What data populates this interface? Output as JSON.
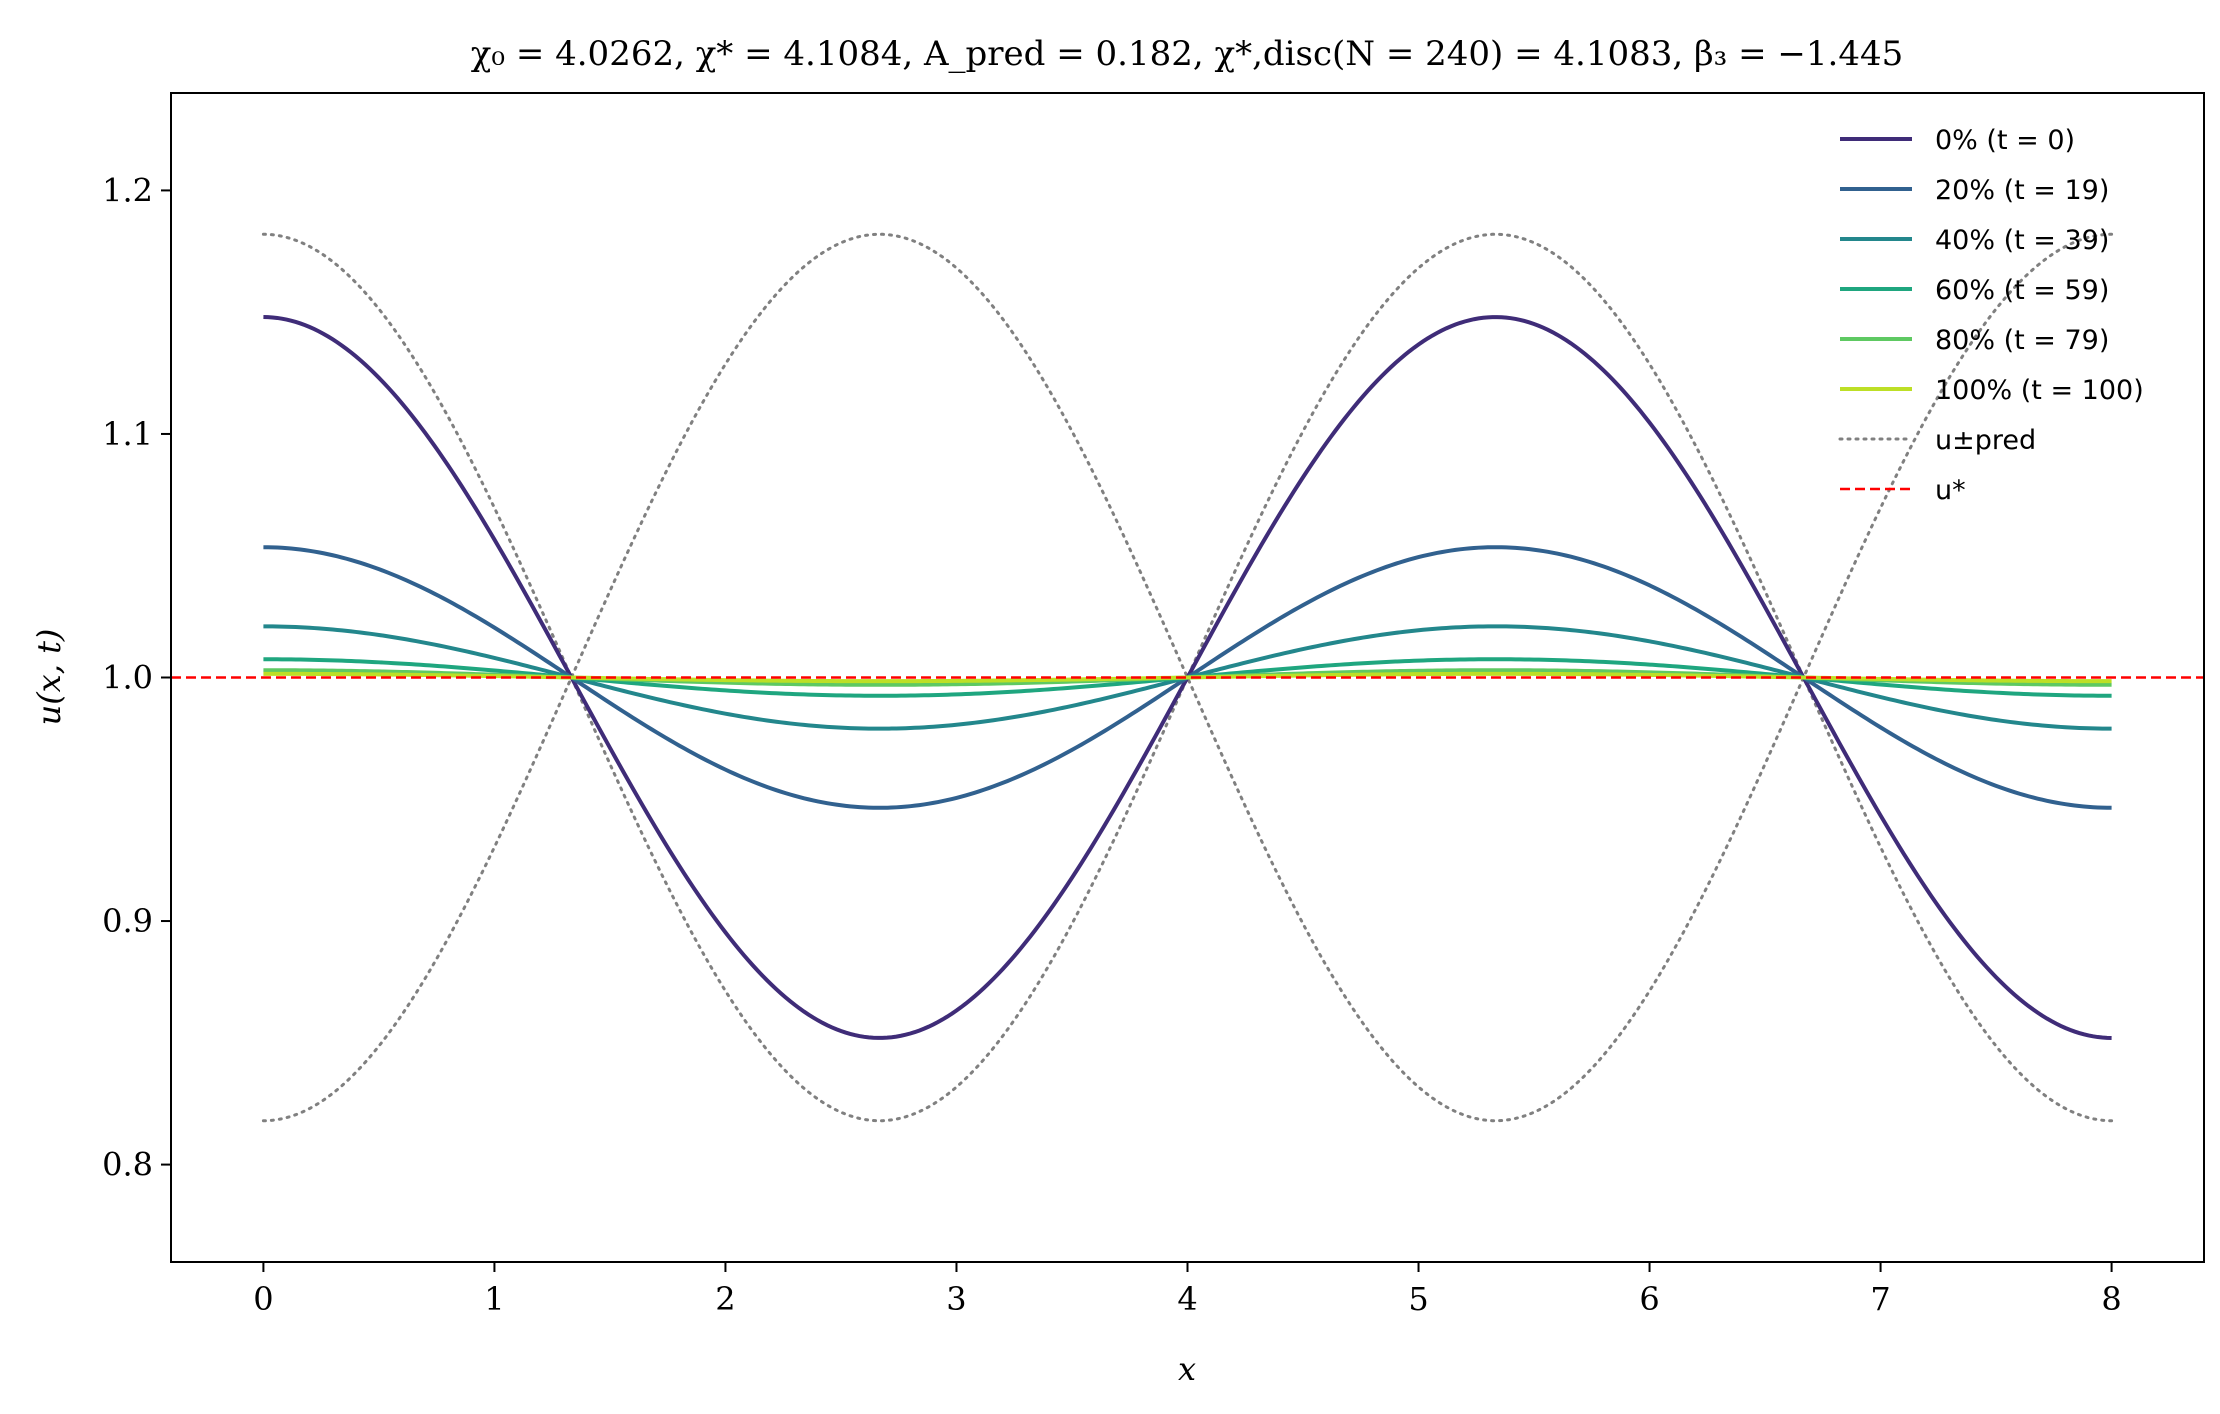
{
  "chart_data": {
    "type": "line",
    "title": "χ₀ = 4.0262,  χ* = 4.1084,  A_pred = 0.182,  χ*,disc(N = 240) = 4.1083,  β₃ = −1.445",
    "xlabel": "x",
    "ylabel": "u(x, t)",
    "xlim": [
      -0.4,
      8.4
    ],
    "ylim": [
      0.76,
      1.24
    ],
    "xticks": [
      0,
      1,
      2,
      3,
      4,
      5,
      6,
      7,
      8
    ],
    "yticks": [
      0.8,
      0.9,
      1.0,
      1.1,
      1.2
    ],
    "grid": false,
    "legend_position": "top-right",
    "x_domain": [
      0,
      8
    ],
    "wave_period": 5.3333,
    "baseline": 1.0,
    "series": [
      {
        "name": "0% (t = 0)",
        "amplitude": 0.148,
        "color": "#3f2c78",
        "style": "solid"
      },
      {
        "name": "20% (t = 19)",
        "amplitude": 0.0535,
        "color": "#31618f",
        "style": "solid"
      },
      {
        "name": "40% (t = 39)",
        "amplitude": 0.021,
        "color": "#23878c",
        "style": "solid"
      },
      {
        "name": "60% (t = 59)",
        "amplitude": 0.0075,
        "color": "#1fa67f",
        "style": "solid"
      },
      {
        "name": "80% (t = 79)",
        "amplitude": 0.003,
        "color": "#5ec962",
        "style": "solid"
      },
      {
        "name": "100% (t = 100)",
        "amplitude": 0.0015,
        "color": "#bddf26",
        "style": "solid"
      }
    ],
    "envelope": {
      "name": "u±pred",
      "amplitude": 0.182,
      "color": "#808080",
      "style": "dotted"
    },
    "steady_state": {
      "name": "u*",
      "value": 1.0,
      "color": "#ff0000",
      "style": "dashed"
    }
  }
}
